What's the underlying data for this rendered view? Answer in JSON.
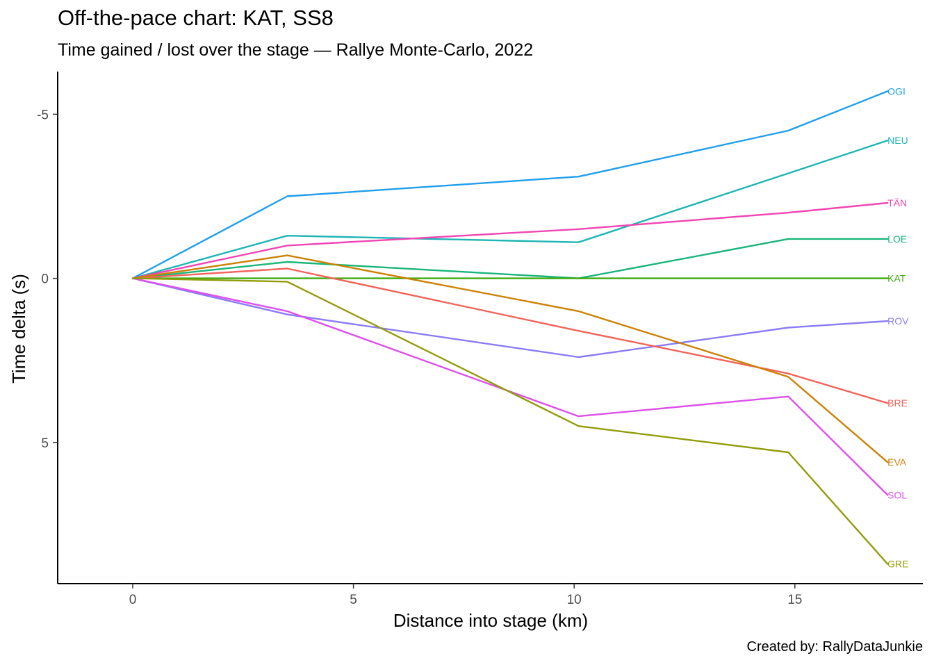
{
  "chart_data": {
    "type": "line",
    "title": "Off-the-pace chart: KAT, SS8",
    "subtitle": "Time gained / lost over the stage — Rallye Monte-Carlo, 2022",
    "caption": "Created by: RallyDataJunkie",
    "xlabel": "Distance into stage (km)",
    "ylabel": "Time delta (s)",
    "xlim": [
      -1.7,
      17.9
    ],
    "ylim": [
      -6.3,
      9.3
    ],
    "y_reversed": true,
    "x_ticks": [
      0,
      5,
      10,
      15
    ],
    "x_tick_labels": [
      "0",
      "5",
      "10",
      "15"
    ],
    "y_ticks": [
      -5,
      0,
      5
    ],
    "y_tick_labels": [
      "-5",
      "0",
      "5"
    ],
    "grid": false,
    "legend": "none; series labels at line ends",
    "x": [
      0,
      3.5,
      10.1,
      14.85,
      17.1
    ],
    "series": [
      {
        "name": "OGI",
        "color": "#1F9FEB",
        "values": [
          0,
          -2.5,
          -3.1,
          -4.5,
          -5.7
        ]
      },
      {
        "name": "NEU",
        "color": "#1FB5B5",
        "values": [
          0,
          -1.3,
          -1.1,
          -3.2,
          -4.2
        ]
      },
      {
        "name": "TÄN",
        "color": "#F045B3",
        "values": [
          0,
          -1.0,
          -1.5,
          -2.0,
          -2.3
        ]
      },
      {
        "name": "LOE",
        "color": "#19B57A",
        "values": [
          0,
          -0.5,
          0.0,
          -1.2,
          -1.2
        ]
      },
      {
        "name": "KAT",
        "color": "#3DAA10",
        "values": [
          0,
          0.0,
          0.0,
          0.0,
          0.0
        ]
      },
      {
        "name": "ROV",
        "color": "#8B7BF5",
        "values": [
          0,
          1.1,
          2.4,
          1.5,
          1.3
        ]
      },
      {
        "name": "BRE",
        "color": "#F0645A",
        "values": [
          0,
          -0.3,
          1.6,
          2.9,
          3.8
        ]
      },
      {
        "name": "EVA",
        "color": "#CC8205",
        "values": [
          0,
          -0.7,
          1.0,
          3.0,
          5.6
        ]
      },
      {
        "name": "SOL",
        "color": "#DE4FEB",
        "values": [
          0,
          1.0,
          4.2,
          3.6,
          6.6
        ]
      },
      {
        "name": "GRE",
        "color": "#929C0A",
        "values": [
          0,
          0.1,
          4.5,
          5.3,
          8.7
        ]
      }
    ]
  }
}
